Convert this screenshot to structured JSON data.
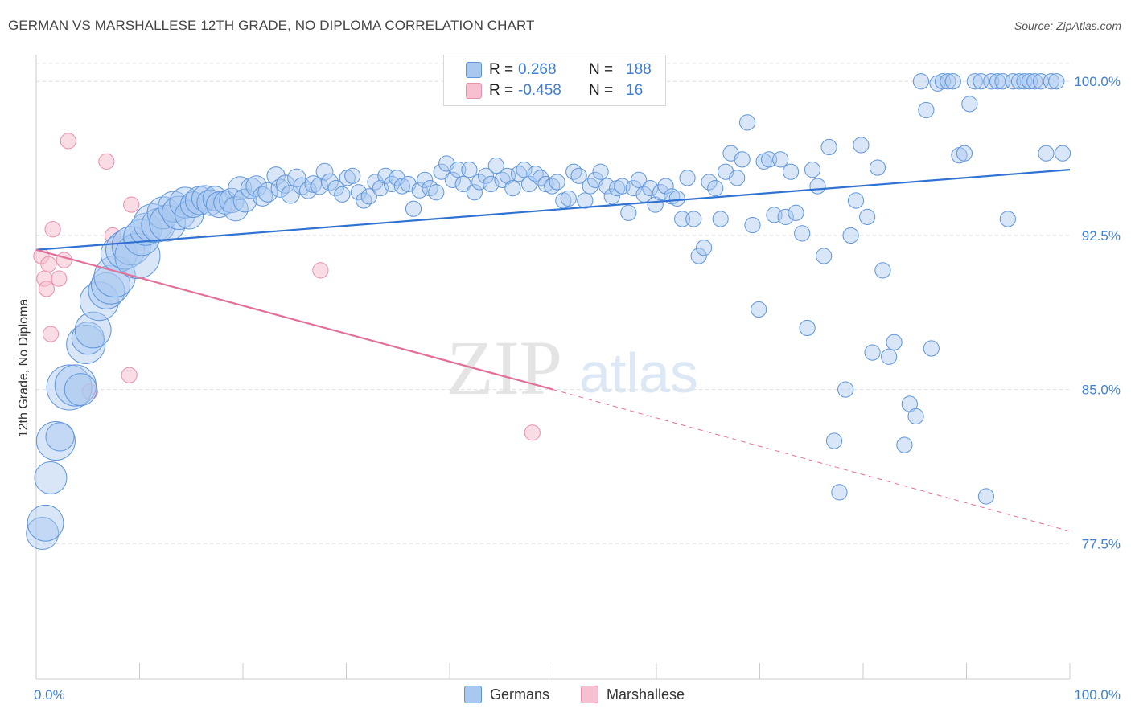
{
  "title": "GERMAN VS MARSHALLESE 12TH GRADE, NO DIPLOMA CORRELATION CHART",
  "source": "Source: ZipAtlas.com",
  "watermark": {
    "zip": "ZIP",
    "atlas": "atlas"
  },
  "legend_top": {
    "r_label": "R =",
    "n_label": "N =",
    "rows": [
      {
        "r": "0.268",
        "n": "188"
      },
      {
        "r": "-0.458",
        "n": "16"
      }
    ]
  },
  "legend_bottom": [
    "Germans",
    "Marshallese"
  ],
  "colors": {
    "german_fill": "#a8c8f0",
    "german_stroke": "#5f95dc",
    "german_line": "#2f72d2",
    "marsh_fill": "#f6c0d0",
    "marsh_stroke": "#ea8fac",
    "marsh_line": "#e2709a",
    "tick_label": "#3f7fd6",
    "grid": "#dddddd"
  },
  "chart_data": {
    "type": "scatter",
    "title": "GERMAN VS MARSHALLESE 12TH GRADE, NO DIPLOMA CORRELATION CHART",
    "xlabel": "",
    "ylabel": "12th Grade, No Diploma",
    "xlim": [
      0,
      100
    ],
    "ylim": [
      70.9,
      101.3
    ],
    "x_tick_labels": [
      "0.0%",
      "100.0%"
    ],
    "y_ticks": [
      77.5,
      85.0,
      92.5,
      100.0
    ],
    "y_tick_labels": [
      "77.5%",
      "85.0%",
      "92.5%",
      "100.0%"
    ],
    "grid": true,
    "legend_position": "top-center",
    "series": [
      {
        "name": "Germans",
        "R": 0.268,
        "N": 188,
        "trend": {
          "x0": 0,
          "y0": 91.8,
          "x1": 100,
          "y1": 95.7
        },
        "points": [
          [
            0.6,
            78.0,
            2.5
          ],
          [
            0.9,
            78.5,
            2.8
          ],
          [
            1.4,
            80.7,
            2.5
          ],
          [
            1.9,
            82.5,
            3.0
          ],
          [
            2.3,
            82.7,
            2.2
          ],
          [
            3.2,
            85.1,
            3.5
          ],
          [
            3.8,
            85.2,
            3.2
          ],
          [
            4.3,
            85.0,
            2.5
          ],
          [
            4.8,
            87.2,
            3.0
          ],
          [
            5.0,
            87.5,
            2.5
          ],
          [
            5.5,
            87.9,
            2.8
          ],
          [
            6.1,
            89.3,
            3.0
          ],
          [
            6.8,
            89.8,
            2.8
          ],
          [
            7.2,
            90.1,
            3.0
          ],
          [
            7.6,
            90.5,
            3.2
          ],
          [
            8.0,
            91.6,
            2.8
          ],
          [
            8.6,
            91.8,
            3.0
          ],
          [
            9.2,
            92.0,
            3.0
          ],
          [
            9.8,
            91.5,
            3.5
          ],
          [
            10.2,
            92.4,
            2.8
          ],
          [
            10.6,
            92.8,
            2.5
          ],
          [
            11.3,
            93.1,
            3.0
          ],
          [
            11.8,
            93.0,
            2.6
          ],
          [
            12.3,
            93.6,
            2.5
          ],
          [
            12.7,
            93.1,
            2.8
          ],
          [
            13.3,
            93.9,
            2.4
          ],
          [
            13.8,
            93.6,
            2.6
          ],
          [
            14.4,
            94.1,
            2.4
          ],
          [
            14.8,
            93.5,
            2.2
          ],
          [
            15.2,
            94.0,
            2.0
          ],
          [
            15.8,
            94.2,
            2.2
          ],
          [
            16.3,
            94.3,
            2.0
          ],
          [
            16.8,
            94.1,
            2.0
          ],
          [
            17.3,
            94.3,
            1.9
          ],
          [
            17.7,
            94.0,
            2.0
          ],
          [
            18.3,
            94.1,
            1.8
          ],
          [
            18.9,
            94.2,
            1.9
          ],
          [
            19.3,
            93.8,
            1.9
          ],
          [
            19.7,
            94.8,
            1.8
          ],
          [
            20.2,
            94.2,
            1.8
          ],
          [
            20.8,
            94.8,
            1.6
          ],
          [
            21.3,
            94.9,
            1.6
          ],
          [
            21.9,
            94.4,
            1.5
          ],
          [
            22.4,
            94.6,
            1.5
          ],
          [
            23.2,
            95.4,
            1.4
          ],
          [
            23.6,
            94.8,
            1.4
          ],
          [
            24.1,
            95.0,
            1.4
          ],
          [
            24.6,
            94.5,
            1.4
          ],
          [
            25.2,
            95.3,
            1.4
          ],
          [
            25.7,
            94.9,
            1.3
          ],
          [
            26.3,
            94.7,
            1.3
          ],
          [
            26.8,
            95.0,
            1.3
          ],
          [
            27.4,
            94.9,
            1.3
          ],
          [
            27.9,
            95.6,
            1.3
          ],
          [
            28.4,
            95.1,
            1.3
          ],
          [
            29.0,
            94.8,
            1.2
          ],
          [
            29.6,
            94.5,
            1.2
          ],
          [
            30.1,
            95.3,
            1.2
          ],
          [
            30.6,
            95.4,
            1.2
          ],
          [
            31.2,
            94.6,
            1.2
          ],
          [
            31.7,
            94.2,
            1.2
          ],
          [
            32.2,
            94.4,
            1.2
          ],
          [
            32.8,
            95.1,
            1.2
          ],
          [
            33.3,
            94.8,
            1.2
          ],
          [
            33.8,
            95.4,
            1.2
          ],
          [
            34.4,
            95.0,
            1.2
          ],
          [
            34.9,
            95.3,
            1.2
          ],
          [
            35.4,
            94.9,
            1.2
          ],
          [
            36.0,
            95.0,
            1.2
          ],
          [
            36.5,
            93.8,
            1.2
          ],
          [
            37.1,
            94.7,
            1.2
          ],
          [
            37.6,
            95.2,
            1.2
          ],
          [
            38.1,
            94.8,
            1.2
          ],
          [
            38.7,
            94.6,
            1.2
          ],
          [
            39.2,
            95.6,
            1.2
          ],
          [
            39.7,
            96.0,
            1.2
          ],
          [
            40.3,
            95.2,
            1.2
          ],
          [
            40.8,
            95.7,
            1.2
          ],
          [
            41.3,
            95.0,
            1.2
          ],
          [
            41.9,
            95.7,
            1.2
          ],
          [
            42.4,
            94.6,
            1.2
          ],
          [
            42.9,
            95.1,
            1.2
          ],
          [
            43.5,
            95.4,
            1.2
          ],
          [
            44.0,
            95.0,
            1.2
          ],
          [
            44.5,
            95.9,
            1.2
          ],
          [
            45.1,
            95.2,
            1.2
          ],
          [
            45.6,
            95.4,
            1.2
          ],
          [
            46.1,
            94.8,
            1.2
          ],
          [
            46.7,
            95.5,
            1.2
          ],
          [
            47.2,
            95.7,
            1.2
          ],
          [
            47.7,
            95.0,
            1.2
          ],
          [
            48.3,
            95.5,
            1.2
          ],
          [
            48.8,
            95.3,
            1.2
          ],
          [
            49.3,
            95.0,
            1.2
          ],
          [
            49.9,
            94.9,
            1.2
          ],
          [
            50.4,
            95.1,
            1.2
          ],
          [
            51.0,
            94.2,
            1.2
          ],
          [
            51.5,
            94.3,
            1.2
          ],
          [
            52.0,
            95.6,
            1.2
          ],
          [
            52.5,
            95.4,
            1.2
          ],
          [
            53.1,
            94.2,
            1.2
          ],
          [
            53.6,
            94.9,
            1.2
          ],
          [
            54.1,
            95.2,
            1.2
          ],
          [
            54.6,
            95.6,
            1.2
          ],
          [
            55.2,
            94.9,
            1.2
          ],
          [
            55.7,
            94.4,
            1.2
          ],
          [
            56.2,
            94.8,
            1.2
          ],
          [
            56.7,
            94.9,
            1.2
          ],
          [
            57.3,
            93.6,
            1.2
          ],
          [
            57.8,
            94.8,
            1.2
          ],
          [
            58.3,
            95.2,
            1.2
          ],
          [
            58.8,
            94.5,
            1.2
          ],
          [
            59.4,
            94.8,
            1.2
          ],
          [
            59.9,
            94.0,
            1.2
          ],
          [
            60.4,
            94.6,
            1.2
          ],
          [
            60.9,
            94.9,
            1.2
          ],
          [
            61.5,
            94.4,
            1.2
          ],
          [
            62.0,
            94.3,
            1.2
          ],
          [
            62.5,
            93.3,
            1.2
          ],
          [
            63.0,
            95.3,
            1.2
          ],
          [
            63.6,
            93.3,
            1.2
          ],
          [
            64.1,
            91.5,
            1.2
          ],
          [
            64.6,
            91.9,
            1.2
          ],
          [
            65.1,
            95.1,
            1.2
          ],
          [
            65.7,
            94.8,
            1.2
          ],
          [
            66.2,
            93.3,
            1.2
          ],
          [
            66.7,
            95.6,
            1.2
          ],
          [
            67.2,
            96.5,
            1.2
          ],
          [
            67.8,
            95.3,
            1.2
          ],
          [
            68.3,
            96.2,
            1.2
          ],
          [
            68.8,
            98.0,
            1.2
          ],
          [
            69.3,
            93.0,
            1.2
          ],
          [
            69.9,
            88.9,
            1.2
          ],
          [
            70.4,
            96.1,
            1.2
          ],
          [
            70.9,
            96.2,
            1.2
          ],
          [
            71.4,
            93.5,
            1.2
          ],
          [
            72.0,
            96.2,
            1.2
          ],
          [
            72.5,
            93.4,
            1.2
          ],
          [
            73.0,
            95.6,
            1.2
          ],
          [
            73.5,
            93.6,
            1.2
          ],
          [
            74.1,
            92.6,
            1.2
          ],
          [
            74.6,
            88.0,
            1.2
          ],
          [
            75.1,
            95.7,
            1.2
          ],
          [
            75.6,
            94.9,
            1.2
          ],
          [
            76.2,
            91.5,
            1.2
          ],
          [
            76.7,
            96.8,
            1.2
          ],
          [
            77.2,
            82.5,
            1.2
          ],
          [
            77.7,
            80.0,
            1.2
          ],
          [
            78.3,
            85.0,
            1.2
          ],
          [
            78.8,
            92.5,
            1.2
          ],
          [
            79.3,
            94.2,
            1.2
          ],
          [
            79.8,
            96.9,
            1.2
          ],
          [
            80.4,
            93.4,
            1.2
          ],
          [
            80.9,
            86.8,
            1.2
          ],
          [
            81.4,
            95.8,
            1.2
          ],
          [
            81.9,
            90.8,
            1.2
          ],
          [
            82.5,
            86.6,
            1.2
          ],
          [
            83.0,
            87.3,
            1.2
          ],
          [
            84.0,
            82.3,
            1.2
          ],
          [
            84.5,
            84.3,
            1.2
          ],
          [
            85.1,
            83.7,
            1.2
          ],
          [
            85.6,
            100.0,
            1.2
          ],
          [
            86.1,
            98.6,
            1.2
          ],
          [
            86.6,
            87.0,
            1.2
          ],
          [
            87.2,
            99.9,
            1.2
          ],
          [
            87.7,
            100.0,
            1.2
          ],
          [
            88.2,
            100.0,
            1.2
          ],
          [
            88.7,
            100.0,
            1.2
          ],
          [
            89.3,
            96.4,
            1.2
          ],
          [
            89.8,
            96.5,
            1.2
          ],
          [
            90.3,
            98.9,
            1.2
          ],
          [
            90.8,
            100.0,
            1.2
          ],
          [
            91.4,
            100.0,
            1.2
          ],
          [
            91.9,
            79.8,
            1.2
          ],
          [
            92.4,
            100.0,
            1.2
          ],
          [
            93.0,
            100.0,
            1.2
          ],
          [
            93.5,
            100.0,
            1.2
          ],
          [
            94.0,
            93.3,
            1.2
          ],
          [
            94.5,
            100.0,
            1.2
          ],
          [
            95.1,
            100.0,
            1.2
          ],
          [
            95.6,
            100.0,
            1.2
          ],
          [
            96.1,
            100.0,
            1.2
          ],
          [
            96.6,
            100.0,
            1.2
          ],
          [
            97.2,
            100.0,
            1.2
          ],
          [
            97.7,
            96.5,
            1.2
          ],
          [
            98.2,
            100.0,
            1.2
          ],
          [
            98.7,
            100.0,
            1.2
          ],
          [
            99.3,
            96.5,
            1.2
          ]
        ]
      },
      {
        "name": "Marshallese",
        "R": -0.458,
        "N": 16,
        "trend": {
          "x0": 0,
          "y0": 91.8,
          "x1": 50,
          "y1": 85.0,
          "dashed_to": {
            "x": 100,
            "y": 78.1
          }
        },
        "points": [
          [
            0.5,
            91.5,
            1.2
          ],
          [
            0.8,
            90.4,
            1.2
          ],
          [
            1.0,
            89.9,
            1.2
          ],
          [
            1.2,
            91.1,
            1.2
          ],
          [
            1.4,
            87.7,
            1.2
          ],
          [
            1.6,
            92.8,
            1.2
          ],
          [
            2.2,
            90.4,
            1.2
          ],
          [
            2.7,
            91.3,
            1.2
          ],
          [
            3.1,
            97.1,
            1.2
          ],
          [
            5.2,
            84.9,
            1.2
          ],
          [
            6.8,
            96.1,
            1.2
          ],
          [
            7.4,
            92.5,
            1.2
          ],
          [
            9.0,
            85.7,
            1.2
          ],
          [
            9.2,
            94.0,
            1.2
          ],
          [
            27.5,
            90.8,
            1.2
          ],
          [
            48.0,
            82.9,
            1.2
          ]
        ]
      }
    ]
  }
}
